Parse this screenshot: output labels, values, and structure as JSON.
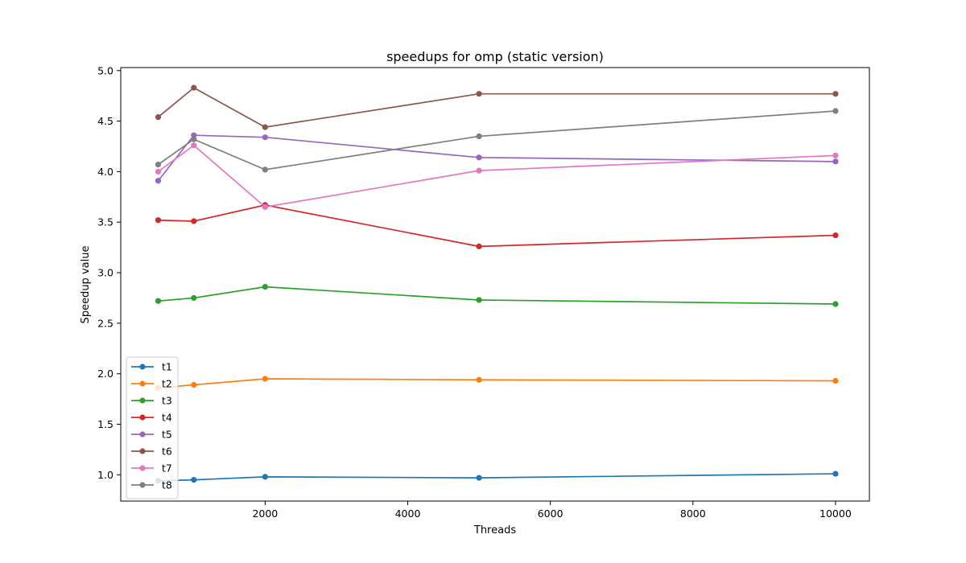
{
  "chart_data": {
    "type": "line",
    "title": "speedups for omp (static version)",
    "xlabel": "Threads",
    "ylabel": "Speedup value",
    "x": [
      500,
      1000,
      2000,
      5000,
      10000
    ],
    "xlim": [
      -25,
      10475
    ],
    "ylim": [
      0.74,
      5.03
    ],
    "xticks": [
      2000,
      4000,
      6000,
      8000,
      10000
    ],
    "yticks": [
      1.0,
      1.5,
      2.0,
      2.5,
      3.0,
      3.5,
      4.0,
      4.5,
      5.0
    ],
    "grid": false,
    "legend": "lower-left",
    "series": [
      {
        "name": "t1",
        "color": "#1f77b4",
        "values": [
          0.94,
          0.95,
          0.98,
          0.97,
          1.01
        ]
      },
      {
        "name": "t2",
        "color": "#ff7f0e",
        "values": [
          1.86,
          1.89,
          1.95,
          1.94,
          1.93
        ]
      },
      {
        "name": "t3",
        "color": "#2ca02c",
        "values": [
          2.72,
          2.75,
          2.86,
          2.73,
          2.69
        ]
      },
      {
        "name": "t4",
        "color": "#d62728",
        "values": [
          3.52,
          3.51,
          3.67,
          3.26,
          3.37
        ]
      },
      {
        "name": "t5",
        "color": "#9467bd",
        "values": [
          3.91,
          4.36,
          4.34,
          4.14,
          4.1
        ]
      },
      {
        "name": "t6",
        "color": "#8c564b",
        "values": [
          4.54,
          4.83,
          4.44,
          4.77,
          4.77
        ]
      },
      {
        "name": "t7",
        "color": "#e377c2",
        "values": [
          4.0,
          4.26,
          3.65,
          4.01,
          4.16
        ]
      },
      {
        "name": "t8",
        "color": "#7f7f7f",
        "values": [
          4.07,
          4.32,
          4.02,
          4.35,
          4.6
        ]
      }
    ]
  }
}
